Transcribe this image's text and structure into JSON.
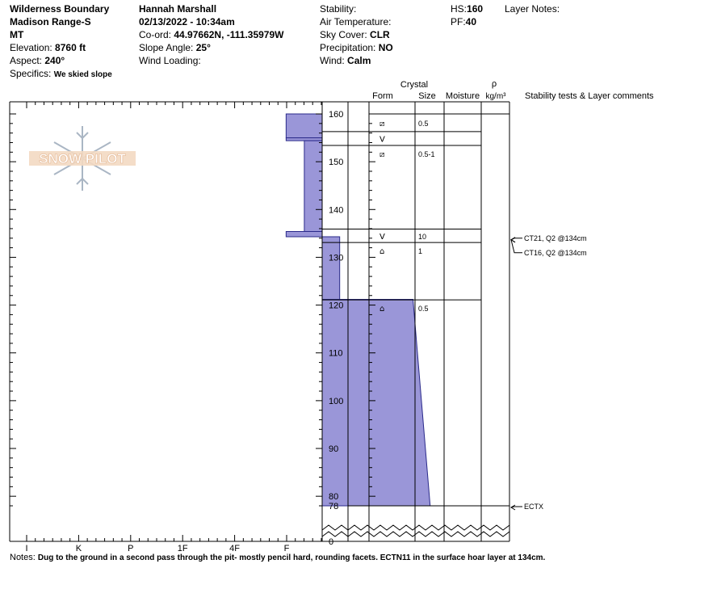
{
  "header": {
    "location": {
      "line1": "Wilderness Boundary",
      "line2": "Madison Range-S",
      "line3": "MT",
      "elevation_label": "Elevation:",
      "elevation_value": "8760 ft",
      "aspect_label": "Aspect:",
      "aspect_value": "240°",
      "specifics_label": "Specifics:",
      "specifics_value": "We skied slope"
    },
    "observer": {
      "name": "Hannah Marshall",
      "datetime": "02/13/2022 - 10:34am",
      "coord_label": "Co-ord:",
      "coord_value": "44.97662N, -111.35979W",
      "slope_label": "Slope Angle:",
      "slope_value": "25°",
      "wind_loading_label": "Wind Loading:"
    },
    "conditions": {
      "stability_label": "Stability:",
      "air_temp_label": "Air Temperature:",
      "sky_label": "Sky Cover:",
      "sky_value": "CLR",
      "precip_label": "Precipitation:",
      "precip_value": "NO",
      "wind_label": "Wind:",
      "wind_value": "Calm"
    },
    "depth": {
      "hs_label": "HS:",
      "hs_value": "160",
      "pf_label": "PF:",
      "pf_value": "40"
    },
    "layer_notes_label": "Layer Notes:"
  },
  "logo": {
    "text": "SNOW PILOT"
  },
  "columns": {
    "crystal": "Crystal",
    "form": "Form",
    "size": "Size",
    "moisture": "Moisture",
    "rho": "ρ",
    "density_unit": "kg/m³",
    "tests": "Stability tests & Layer comments"
  },
  "chart_data": {
    "type": "snow_profile",
    "y_axis": {
      "min": 78,
      "max": 160,
      "ticks": [
        80,
        90,
        100,
        110,
        120,
        130,
        140,
        150,
        160
      ],
      "bottom_label": "78",
      "ground_label": "0"
    },
    "hardness_scale": [
      "I",
      "K",
      "P",
      "1F",
      "4F",
      "F"
    ],
    "hardness_layers": [
      {
        "top": 160,
        "bottom": 155,
        "hardness_top": 4.99,
        "hardness_bottom": 4.99
      },
      {
        "top": 155,
        "bottom": 154.4,
        "hardness_top": 4.99,
        "hardness_bottom": 4.99
      },
      {
        "top": 154.4,
        "bottom": 135.4,
        "hardness_top": 5.34,
        "hardness_bottom": 5.34
      },
      {
        "top": 135.4,
        "bottom": 134.3,
        "hardness_top": 4.99,
        "hardness_bottom": 4.99
      },
      {
        "top": 134.3,
        "bottom": 121.2,
        "hardness_top": 6.02,
        "hardness_bottom": 6.02
      },
      {
        "top": 121.2,
        "bottom": 78,
        "hardness_top": 7.43,
        "hardness_bottom": 7.76
      }
    ],
    "layers": [
      {
        "top": 160,
        "bottom": 156.3,
        "form": "⧄",
        "size": "0.5"
      },
      {
        "top": 156.3,
        "bottom": 153.4,
        "form": "V",
        "size": ""
      },
      {
        "top": 153.4,
        "bottom": 135.9,
        "form": "⧄",
        "size": "0.5-1"
      },
      {
        "top": 135.9,
        "bottom": 133.1,
        "form": "V",
        "size": "10"
      },
      {
        "top": 133.1,
        "bottom": 121.1,
        "form": "⌂",
        "size": "1"
      },
      {
        "top": 121.1,
        "bottom": 78,
        "form": "⌂",
        "size": "0.5"
      }
    ],
    "tests": [
      {
        "depth": 134,
        "text": "CT21, Q2 @134cm"
      },
      {
        "depth": 134,
        "text": "CT16, Q2 @134cm"
      },
      {
        "depth": 78,
        "text": "ECTX"
      }
    ]
  },
  "notes": {
    "label": "Notes:",
    "text": "Dug to the ground in a second pass through the pit- mostly pencil hard, rounding facets. ECTN11 in the surface hoar layer at 134cm."
  }
}
